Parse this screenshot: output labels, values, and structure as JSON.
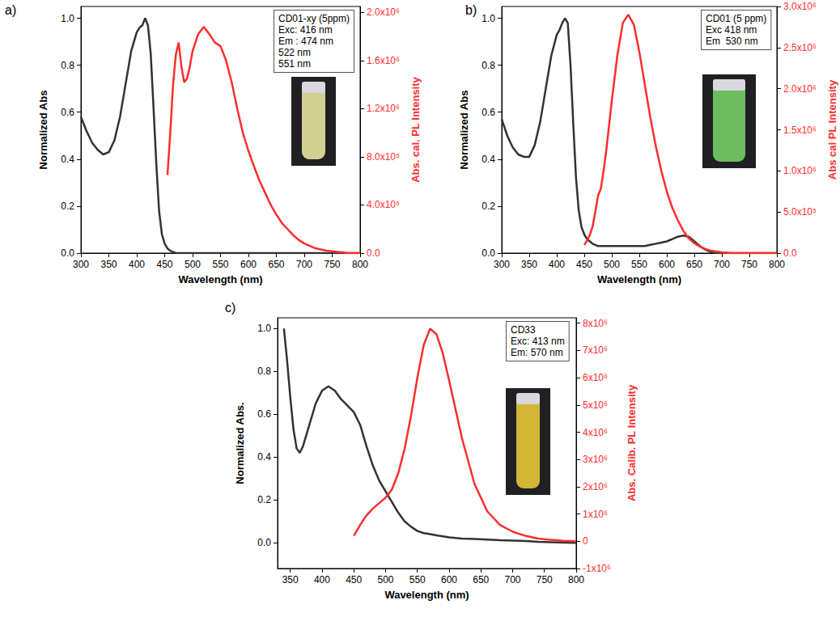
{
  "chart_data": [
    {
      "type": "line",
      "panel_label": "a)",
      "annotation": [
        "CD01-xy (5ppm)",
        "Exc: 416 nm",
        "Em : 474 nm",
        "522 nm",
        "551 nm"
      ],
      "x_label": "Wavelength (nm)",
      "y_label": "Normalized Abs",
      "y2_label": "Abs. cal. PL Intensity",
      "x": [
        300,
        310,
        320,
        330,
        340,
        350,
        360,
        370,
        380,
        390,
        400,
        405,
        410,
        415,
        420,
        425,
        430,
        435,
        440,
        445,
        450,
        455,
        460,
        465,
        470,
        475,
        480,
        485,
        490,
        495,
        500,
        510,
        520,
        530,
        540,
        550,
        560,
        570,
        580,
        590,
        600,
        610,
        620,
        630,
        640,
        650,
        660,
        670,
        680,
        690,
        700,
        720,
        740,
        760,
        780,
        800
      ],
      "series": [
        {
          "color": "#333333",
          "axis": "y",
          "values": [
            0.58,
            0.52,
            0.47,
            0.44,
            0.42,
            0.43,
            0.48,
            0.58,
            0.72,
            0.86,
            0.94,
            0.96,
            0.97,
            1.0,
            0.97,
            0.85,
            0.62,
            0.38,
            0.18,
            0.08,
            0.04,
            0.02,
            0.01,
            0.005,
            0,
            0,
            0,
            0,
            0,
            0,
            0,
            0,
            0,
            0,
            0,
            0,
            0,
            0,
            0,
            0,
            0,
            0,
            0,
            0,
            0,
            0,
            0,
            0,
            0,
            0,
            0,
            0,
            0,
            0,
            0,
            0
          ]
        },
        {
          "color": "#ff2d2d",
          "axis": "y2",
          "values": [
            null,
            null,
            null,
            null,
            null,
            null,
            null,
            null,
            null,
            null,
            null,
            null,
            null,
            null,
            null,
            null,
            null,
            null,
            null,
            null,
            null,
            650000,
            1000000,
            1400000,
            1650000,
            1750000,
            1550000,
            1420000,
            1450000,
            1550000,
            1680000,
            1820000,
            1880000,
            1820000,
            1750000,
            1720000,
            1600000,
            1420000,
            1200000,
            1000000,
            850000,
            720000,
            600000,
            500000,
            400000,
            320000,
            250000,
            200000,
            150000,
            110000,
            80000,
            40000,
            20000,
            10000,
            0,
            0
          ]
        }
      ],
      "xlim": [
        300,
        800
      ],
      "xticks": [
        300,
        350,
        400,
        450,
        500,
        550,
        600,
        650,
        700,
        750,
        800
      ],
      "ylim": [
        0,
        1.05
      ],
      "yticks": [
        {
          "value": 0,
          "label": "0.0"
        },
        0.2,
        0.4,
        0.6,
        0.8,
        {
          "value": 1,
          "label": "1.0"
        }
      ],
      "y2lim": [
        0,
        2050000
      ],
      "y2ticks": [
        {
          "value": 0,
          "label": "0.0"
        },
        {
          "value": 400000,
          "label": "4.0x10⁵"
        },
        {
          "value": 800000,
          "label": "8.0x10⁵"
        },
        {
          "value": 1200000,
          "label": "1.2x10⁶"
        },
        {
          "value": 1600000,
          "label": "1.6x10⁶"
        },
        {
          "value": 2000000,
          "label": "2.0x10⁶"
        }
      ],
      "grid": false
    },
    {
      "type": "line",
      "panel_label": "b)",
      "annotation": [
        "CD01 (5 ppm)",
        "Exc 418 nm",
        "Em  530 nm"
      ],
      "x_label": "Wavelength (nm)",
      "y_label": "Normalized Abs",
      "y2_label": "Abs cal PL Intensity",
      "x": [
        300,
        310,
        320,
        330,
        340,
        350,
        360,
        370,
        380,
        390,
        400,
        405,
        410,
        415,
        420,
        425,
        430,
        435,
        440,
        445,
        450,
        455,
        460,
        465,
        470,
        475,
        480,
        485,
        490,
        495,
        500,
        510,
        520,
        530,
        540,
        550,
        560,
        570,
        580,
        590,
        600,
        610,
        620,
        630,
        640,
        650,
        660,
        670,
        680,
        690,
        700,
        720,
        740,
        760,
        780,
        800
      ],
      "series": [
        {
          "color": "#333333",
          "axis": "y",
          "values": [
            0.57,
            0.5,
            0.45,
            0.42,
            0.41,
            0.41,
            0.46,
            0.56,
            0.7,
            0.84,
            0.93,
            0.95,
            0.98,
            1.0,
            0.98,
            0.8,
            0.55,
            0.32,
            0.18,
            0.11,
            0.08,
            0.06,
            0.05,
            0.04,
            0.035,
            0.03,
            0.03,
            0.03,
            0.03,
            0.03,
            0.03,
            0.03,
            0.03,
            0.03,
            0.03,
            0.03,
            0.03,
            0.035,
            0.04,
            0.045,
            0.05,
            0.06,
            0.07,
            0.075,
            0.07,
            0.05,
            0.03,
            0.015,
            0.005,
            0,
            0,
            0,
            0,
            0,
            0,
            0
          ]
        },
        {
          "color": "#ff2d2d",
          "axis": "y2",
          "values": [
            null,
            null,
            null,
            null,
            null,
            null,
            null,
            null,
            null,
            null,
            null,
            null,
            null,
            null,
            null,
            null,
            null,
            null,
            null,
            null,
            100000,
            150000,
            220000,
            320000,
            500000,
            700000,
            780000,
            1000000,
            1250000,
            1550000,
            1850000,
            2400000,
            2800000,
            2900000,
            2780000,
            2450000,
            2050000,
            1650000,
            1300000,
            1000000,
            750000,
            550000,
            400000,
            270000,
            180000,
            120000,
            80000,
            50000,
            30000,
            20000,
            10000,
            0,
            0,
            0,
            0,
            0
          ]
        }
      ],
      "xlim": [
        300,
        800
      ],
      "xticks": [
        300,
        350,
        400,
        450,
        500,
        550,
        600,
        650,
        700,
        750,
        800
      ],
      "ylim": [
        0,
        1.05
      ],
      "yticks": [
        {
          "value": 0,
          "label": "0.0"
        },
        0.2,
        0.4,
        0.6,
        0.8,
        {
          "value": 1,
          "label": "1.0"
        }
      ],
      "y2lim": [
        0,
        3000000
      ],
      "y2ticks": [
        {
          "value": 0,
          "label": "0.0"
        },
        {
          "value": 500000,
          "label": "5.0x10⁵"
        },
        {
          "value": 1000000,
          "label": "1.0x10⁶"
        },
        {
          "value": 1500000,
          "label": "1.5x10⁶"
        },
        {
          "value": 2000000,
          "label": "2.0x10⁶"
        },
        {
          "value": 2500000,
          "label": "2.5x10⁶"
        },
        {
          "value": 3000000,
          "label": "3.0x10⁶"
        }
      ],
      "grid": false
    },
    {
      "type": "line",
      "panel_label": "c)",
      "annotation": [
        "CD33",
        "Exc: 413 nm",
        "Em: 570 nm"
      ],
      "x_label": "Wavelength (nm)",
      "y_label": "Normalized Abs.",
      "y2_label": "Abs. Calib. PL Intensity",
      "x": [
        340,
        345,
        350,
        355,
        360,
        365,
        370,
        380,
        390,
        400,
        410,
        420,
        430,
        440,
        450,
        460,
        470,
        480,
        490,
        500,
        510,
        520,
        530,
        540,
        550,
        560,
        570,
        580,
        590,
        600,
        620,
        640,
        660,
        680,
        700,
        720,
        740,
        760,
        780,
        800
      ],
      "series": [
        {
          "color": "#333333",
          "axis": "y",
          "values": [
            1.0,
            0.85,
            0.68,
            0.53,
            0.44,
            0.42,
            0.45,
            0.55,
            0.65,
            0.71,
            0.73,
            0.71,
            0.67,
            0.64,
            0.61,
            0.55,
            0.45,
            0.36,
            0.29,
            0.24,
            0.19,
            0.14,
            0.1,
            0.075,
            0.055,
            0.045,
            0.04,
            0.035,
            0.03,
            0.025,
            0.02,
            0.018,
            0.015,
            0.012,
            0.01,
            0.008,
            0.005,
            0.003,
            0.001,
            0
          ]
        },
        {
          "color": "#ff2d2d",
          "axis": "y2",
          "values": [
            null,
            null,
            null,
            null,
            null,
            null,
            null,
            null,
            null,
            null,
            null,
            null,
            null,
            null,
            200000,
            600000,
            950000,
            1200000,
            1400000,
            1600000,
            1900000,
            2500000,
            3400000,
            4600000,
            6000000,
            7200000,
            7800000,
            7600000,
            6900000,
            5900000,
            3800000,
            2100000,
            1100000,
            600000,
            350000,
            200000,
            100000,
            50000,
            20000,
            0
          ]
        }
      ],
      "xlim": [
        330,
        800
      ],
      "xticks": [
        350,
        400,
        450,
        500,
        550,
        600,
        650,
        700,
        750,
        800
      ],
      "ylim": [
        -0.12,
        1.05
      ],
      "yticks": [
        {
          "value": 0,
          "label": "0.0"
        },
        0.2,
        0.4,
        0.6,
        0.8,
        {
          "value": 1,
          "label": "1.0"
        }
      ],
      "y2lim": [
        -1000000,
        8200000
      ],
      "y2ticks": [
        {
          "value": -1000000,
          "label": "-1x10⁶"
        },
        0,
        {
          "value": 1000000,
          "label": "1x10⁶"
        },
        {
          "value": 2000000,
          "label": "2x10⁶"
        },
        {
          "value": 3000000,
          "label": "3x10⁶"
        },
        {
          "value": 4000000,
          "label": "4x10⁶"
        },
        {
          "value": 5000000,
          "label": "5x10⁶"
        },
        {
          "value": 6000000,
          "label": "6x10⁶"
        },
        {
          "value": 7000000,
          "label": "7x10⁶"
        },
        {
          "value": 8000000,
          "label": "8x10⁶"
        }
      ],
      "grid": false
    }
  ]
}
